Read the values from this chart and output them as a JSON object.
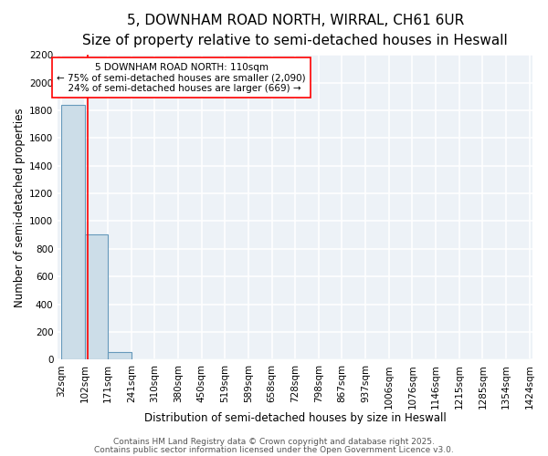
{
  "title": "5, DOWNHAM ROAD NORTH, WIRRAL, CH61 6UR",
  "subtitle": "Size of property relative to semi-detached houses in Heswall",
  "xlabel": "Distribution of semi-detached houses by size in Heswall",
  "ylabel": "Number of semi-detached properties",
  "bin_edges": [
    32,
    102,
    171,
    241,
    310,
    380,
    450,
    519,
    589,
    658,
    728,
    798,
    867,
    937,
    1006,
    1076,
    1146,
    1215,
    1285,
    1354,
    1424
  ],
  "bin_labels": [
    "32sqm",
    "102sqm",
    "171sqm",
    "241sqm",
    "310sqm",
    "380sqm",
    "450sqm",
    "519sqm",
    "589sqm",
    "658sqm",
    "728sqm",
    "798sqm",
    "867sqm",
    "937sqm",
    "1006sqm",
    "1076sqm",
    "1146sqm",
    "1215sqm",
    "1285sqm",
    "1354sqm",
    "1424sqm"
  ],
  "bar_heights": [
    1840,
    905,
    52,
    0,
    0,
    0,
    0,
    0,
    0,
    0,
    0,
    0,
    0,
    0,
    0,
    0,
    0,
    0,
    0,
    0
  ],
  "bar_color": "#ccdde8",
  "bar_edge_color": "#6699bb",
  "property_line_x": 110,
  "property_line_color": "red",
  "annotation_line1": "5 DOWNHAM ROAD NORTH: 110sqm",
  "annotation_line2": "← 75% of semi-detached houses are smaller (2,090)",
  "annotation_line3": "  24% of semi-detached houses are larger (669) →",
  "annotation_box_color": "white",
  "annotation_box_edge_color": "red",
  "ylim": [
    0,
    2200
  ],
  "yticks": [
    0,
    200,
    400,
    600,
    800,
    1000,
    1200,
    1400,
    1600,
    1800,
    2000,
    2200
  ],
  "background_color": "#edf2f7",
  "grid_color": "white",
  "footer_line1": "Contains HM Land Registry data © Crown copyright and database right 2025.",
  "footer_line2": "Contains public sector information licensed under the Open Government Licence v3.0.",
  "title_fontsize": 11,
  "subtitle_fontsize": 9.5,
  "axis_label_fontsize": 8.5,
  "tick_fontsize": 7.5,
  "annotation_fontsize": 7.5,
  "footer_fontsize": 6.5
}
